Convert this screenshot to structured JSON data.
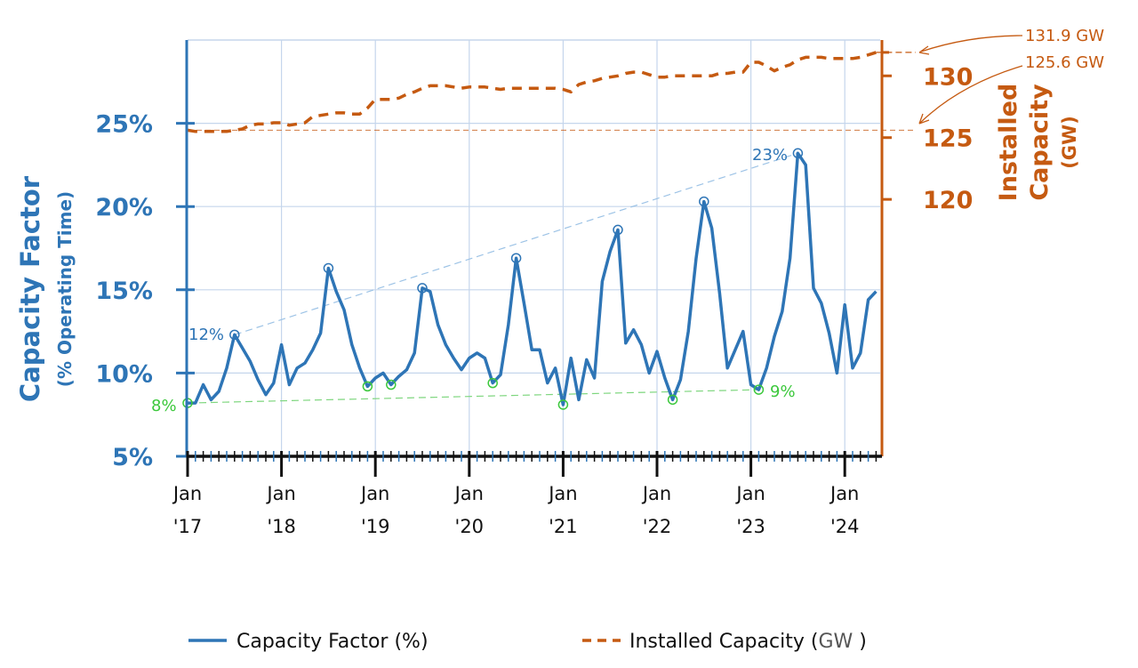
{
  "chart_data": {
    "type": "line",
    "x_start": "2017-01",
    "x_frequency": "monthly",
    "x_tick_labels": [
      [
        "Jan",
        "'17"
      ],
      [
        "Jan",
        "'18"
      ],
      [
        "Jan",
        "'19"
      ],
      [
        "Jan",
        "'20"
      ],
      [
        "Jan",
        "'21"
      ],
      [
        "Jan",
        "'22"
      ],
      [
        "Jan",
        "'23"
      ],
      [
        "Jan",
        "'24"
      ]
    ],
    "grid": true,
    "left_axis": {
      "title": "Capacity Factor",
      "subtitle": "(% Operating Time)",
      "ylim": [
        5,
        30
      ],
      "ticks": [
        5,
        10,
        15,
        20,
        25
      ],
      "tick_labels": [
        "5%",
        "10%",
        "15%",
        "20%",
        "25%"
      ],
      "color": "#2E75B6"
    },
    "right_axis": {
      "title_lines": [
        "Installed",
        "Capacity",
        "(GW)"
      ],
      "ylim": [
        99.2,
        132.9
      ],
      "ticks": [
        120,
        125,
        130
      ],
      "tick_labels": [
        "120",
        "125",
        "130"
      ],
      "color": "#C55A11"
    },
    "series": [
      {
        "name": "Capacity Factor (%)",
        "axis": "left",
        "style": "solid",
        "color": "#2E75B6",
        "values": [
          8.2,
          8.2,
          9.3,
          8.4,
          8.9,
          10.3,
          12.3,
          11.5,
          10.7,
          9.6,
          8.7,
          9.4,
          11.7,
          9.3,
          10.3,
          10.6,
          11.4,
          12.4,
          16.3,
          14.9,
          13.8,
          11.7,
          10.3,
          9.2,
          9.7,
          10.0,
          9.3,
          9.8,
          10.2,
          11.2,
          15.1,
          14.9,
          12.9,
          11.7,
          10.9,
          10.2,
          10.9,
          11.2,
          10.9,
          9.4,
          9.9,
          12.9,
          16.9,
          14.2,
          11.4,
          11.4,
          9.4,
          10.3,
          8.1,
          10.9,
          8.4,
          10.8,
          9.7,
          15.5,
          17.3,
          18.6,
          11.8,
          12.6,
          11.7,
          10.0,
          11.3,
          9.7,
          8.4,
          9.6,
          12.5,
          16.9,
          20.3,
          18.7,
          14.8,
          10.3,
          11.4,
          12.5,
          9.3,
          9.0,
          10.3,
          12.2,
          13.7,
          16.9,
          23.2,
          22.5,
          15.1,
          14.2,
          12.4,
          10.0,
          14.1,
          10.3,
          11.2,
          14.4,
          14.9
        ]
      },
      {
        "name": "Installed Capacity (GW)",
        "axis": "right",
        "style": "dashed",
        "color": "#C55A11",
        "values": [
          125.6,
          125.5,
          125.5,
          125.5,
          125.5,
          125.5,
          125.6,
          125.7,
          126.0,
          126.1,
          126.1,
          126.2,
          126.2,
          126.0,
          126.1,
          126.2,
          126.7,
          126.8,
          126.9,
          127.0,
          127.0,
          126.9,
          126.9,
          127.4,
          128.1,
          128.1,
          128.1,
          128.2,
          128.5,
          128.7,
          129.0,
          129.2,
          129.2,
          129.2,
          129.1,
          129.0,
          129.1,
          129.1,
          129.1,
          129.0,
          128.9,
          129.0,
          129.0,
          129.0,
          129.0,
          129.0,
          129.0,
          129.0,
          128.9,
          128.7,
          129.3,
          129.5,
          129.6,
          129.8,
          129.9,
          130.0,
          130.2,
          130.3,
          130.3,
          130.1,
          129.9,
          129.9,
          130.0,
          130.0,
          130.0,
          130.0,
          130.0,
          130.0,
          130.2,
          130.2,
          130.3,
          130.3,
          131.1,
          131.1,
          130.8,
          130.4,
          130.7,
          130.9,
          131.3,
          131.5,
          131.5,
          131.5,
          131.4,
          131.4,
          131.4,
          131.4,
          131.5,
          131.7,
          131.9
        ]
      }
    ],
    "peak_markers": {
      "color": "#2E75B6",
      "months": [
        "2017-07",
        "2018-07",
        "2019-07",
        "2020-07",
        "2021-08",
        "2022-07",
        "2023-07"
      ]
    },
    "trough_markers": {
      "color": "#3CC83C",
      "months": [
        "2017-01",
        "2018-12",
        "2019-03",
        "2020-04",
        "2021-01",
        "2022-03",
        "2023-02"
      ]
    },
    "annotations": {
      "peak_start": "12%",
      "peak_end": "23%",
      "trough_start": "8%",
      "trough_end": "9%",
      "capacity_end": "131.9 GW",
      "capacity_start": "125.6 GW"
    },
    "legend": {
      "position": "bottom",
      "items": [
        {
          "label": "Capacity Factor (%)",
          "style": "solid",
          "color": "#2E75B6"
        },
        {
          "label_main": "Installed Capacity (",
          "label_unit": "GW",
          "label_close": " )",
          "style": "dashed",
          "color": "#C55A11"
        }
      ]
    }
  }
}
